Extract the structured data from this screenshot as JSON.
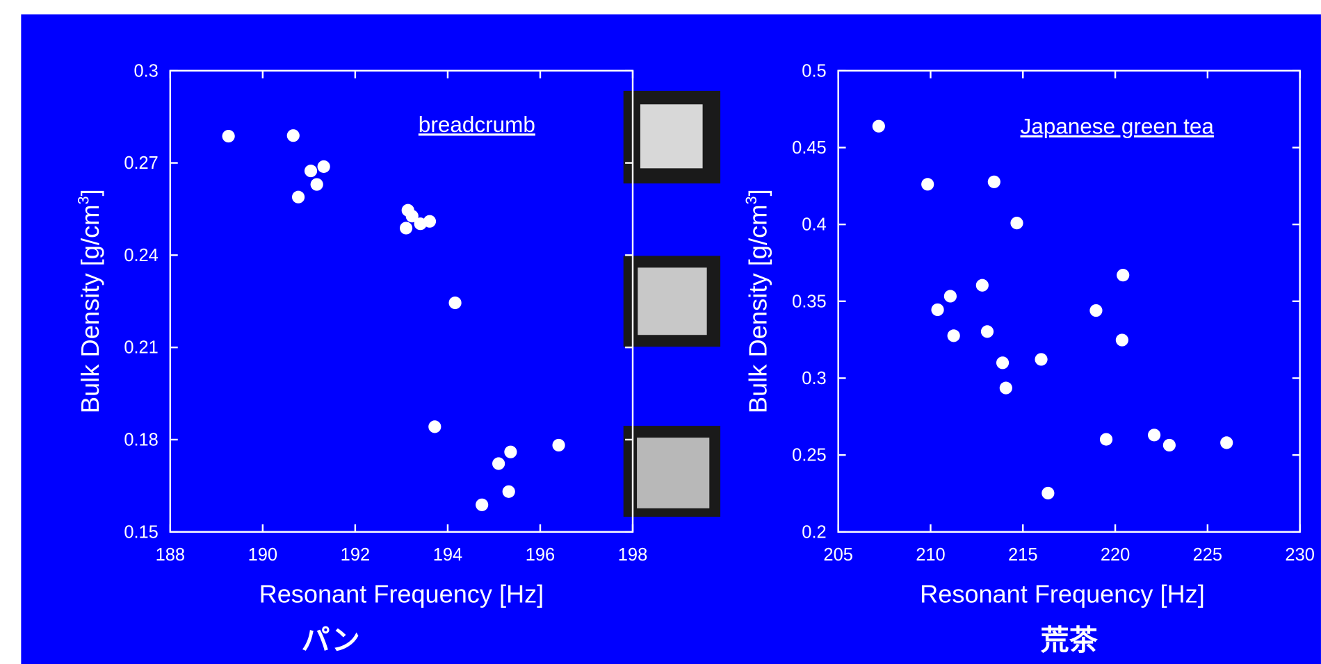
{
  "chart_data": [
    {
      "type": "scatter",
      "annotation": "breadcrumb",
      "x_label": "Resonant Frequency [Hz]",
      "y_label": [
        "Bulk Density [g/cm",
        "3",
        "]"
      ],
      "caption": "パン",
      "color": "#ffffff",
      "xlim": [
        188,
        198
      ],
      "xticks": [
        188,
        190,
        192,
        194,
        196,
        198
      ],
      "ylim": [
        0.15,
        0.3
      ],
      "yticks": [
        0.15,
        0.18,
        0.21,
        0.24,
        0.27,
        0.3
      ],
      "x": [
        189.26,
        190.66,
        191.04,
        191.32,
        190.77,
        191.17,
        193.14,
        193.23,
        193.1,
        193.41,
        193.61,
        194.16,
        193.72,
        195.1,
        195.36,
        196.4,
        195.32,
        194.74
      ],
      "values": [
        0.2787,
        0.2789,
        0.2674,
        0.2688,
        0.2589,
        0.263,
        0.2546,
        0.2527,
        0.2488,
        0.2502,
        0.251,
        0.2245,
        0.1842,
        0.1722,
        0.176,
        0.1782,
        0.1631,
        0.1588
      ]
    },
    {
      "type": "scatter",
      "annotation": "Japanese green tea",
      "x_label": "Resonant Frequency [Hz]",
      "y_label": [
        "Bulk Density [g/cm",
        "3",
        "]"
      ],
      "caption": "荒茶",
      "color": "#ffffff",
      "xlim": [
        205,
        230
      ],
      "xticks": [
        205,
        210,
        215,
        220,
        225,
        230
      ],
      "ylim": [
        0.2,
        0.5
      ],
      "yticks": [
        0.2,
        0.25,
        0.3,
        0.35,
        0.4,
        0.45,
        0.5
      ],
      "x": [
        207.19,
        209.84,
        213.44,
        214.67,
        211.07,
        210.38,
        211.25,
        212.8,
        213.07,
        213.9,
        214.08,
        215.99,
        218.96,
        220.42,
        220.37,
        219.51,
        222.11,
        222.93,
        226.03,
        216.36
      ],
      "values": [
        0.4639,
        0.4261,
        0.4277,
        0.4009,
        0.3533,
        0.3445,
        0.3276,
        0.3604,
        0.3303,
        0.31,
        0.2936,
        0.3122,
        0.344,
        0.367,
        0.3248,
        0.2602,
        0.263,
        0.2564,
        0.258,
        0.2252
      ]
    }
  ]
}
